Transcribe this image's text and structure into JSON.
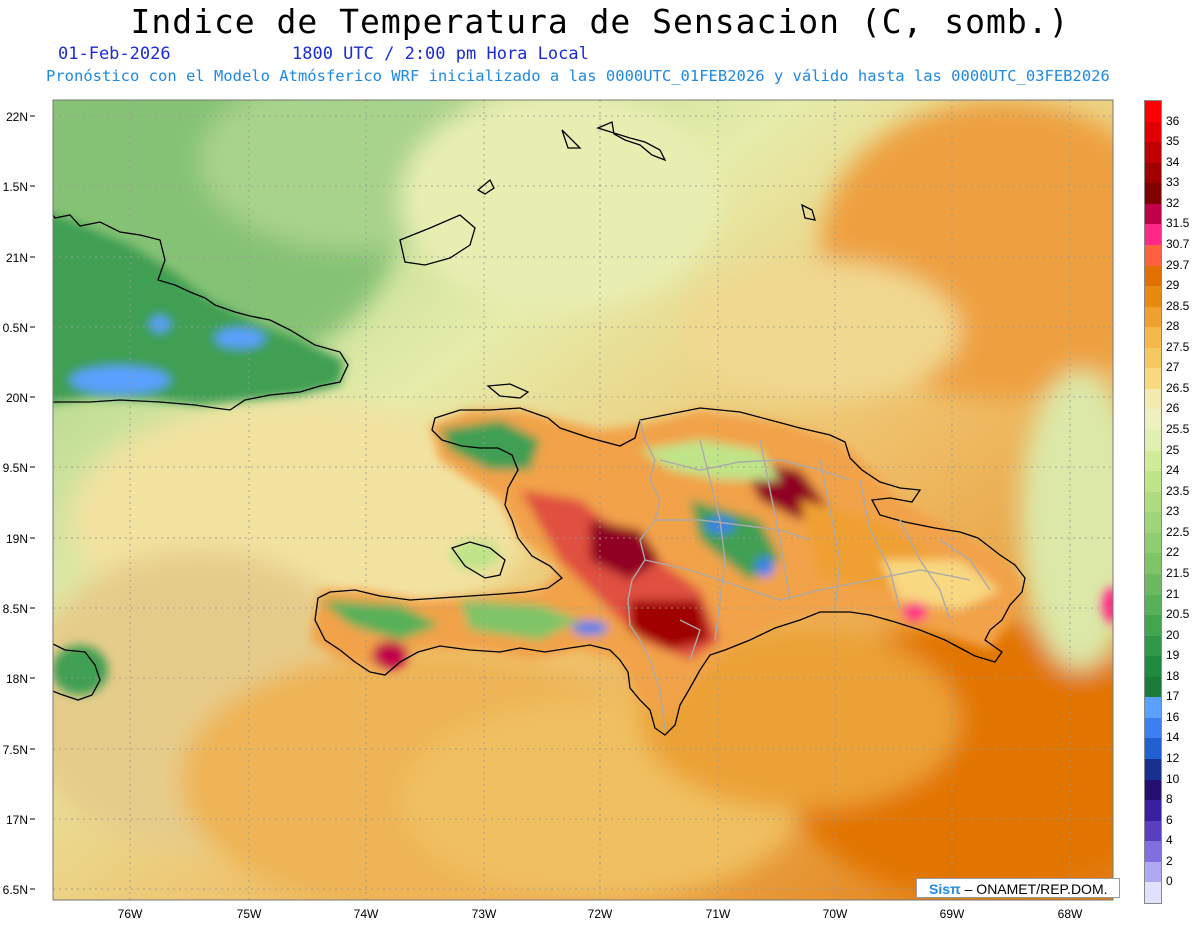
{
  "header": {
    "title": "Indice de Temperatura de Sensacion (C, somb.)",
    "date": "01-Feb-2026",
    "time": "1800 UTC / 2:00 pm Hora Local",
    "model_line": "Pronóstico con el Modelo Atmósferico WRF inicializado a las 0000UTC_01FEB2026 y válido hasta las  0000UTC_03FEB2026"
  },
  "map": {
    "lat_labels": [
      "22N",
      "1.5N",
      "21N",
      "0.5N",
      "20N",
      "9.5N",
      "19N",
      "8.5N",
      "18N",
      "7.5N",
      "17N",
      "6.5N"
    ],
    "lon_labels": [
      "76W",
      "75W",
      "74W",
      "73W",
      "72W",
      "71W",
      "70W",
      "69W",
      "68W"
    ]
  },
  "credit": {
    "brand": "Sisπ",
    "text": "– ONAMET/REP.DOM."
  },
  "colorbar": {
    "labels": [
      "36",
      "35",
      "34",
      "33",
      "32",
      "31.5",
      "30.7",
      "29.7",
      "29",
      "28.5",
      "28",
      "27.5",
      "27",
      "26.5",
      "26",
      "25.5",
      "25",
      "24",
      "23.5",
      "23",
      "22.5",
      "22",
      "21.5",
      "21",
      "20.5",
      "20",
      "19",
      "18",
      "17",
      "16",
      "14",
      "12",
      "10",
      "8",
      "6",
      "4",
      "2",
      "0"
    ],
    "colors": [
      "#ff0000",
      "#e00000",
      "#c00000",
      "#a00000",
      "#800000",
      "#c0004a",
      "#ff2a88",
      "#ff6040",
      "#e07000",
      "#e88a10",
      "#f0a030",
      "#f5b84a",
      "#f7c860",
      "#f8d880",
      "#f3eab0",
      "#eef0c0",
      "#e0f0b0",
      "#d0ec98",
      "#c0e488",
      "#b0dc80",
      "#a0d478",
      "#90cc70",
      "#80c468",
      "#6cba60",
      "#58b058",
      "#40a650",
      "#309848",
      "#208a40",
      "#1a7c38",
      "#5aa0ff",
      "#3a80f0",
      "#2060d0",
      "#183090",
      "#241070",
      "#3a20a0",
      "#5a40c0",
      "#8070e0",
      "#b0a8f0",
      "#e0e0ff"
    ]
  }
}
